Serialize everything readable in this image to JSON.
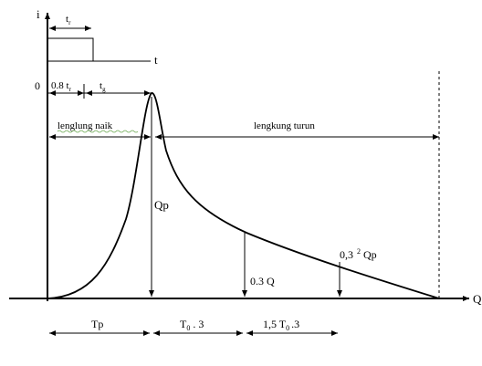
{
  "axes": {
    "y_label": "i",
    "x_label": "Q"
  },
  "rain": {
    "tr_label": "t",
    "tr_sub": "r",
    "t_label": "t"
  },
  "top_dims": {
    "origin_label": "0",
    "lag_label": "0.8 t",
    "lag_sub": "r",
    "tg_label": "t",
    "tg_sub": "g"
  },
  "limbs": {
    "rising_label": "lenglung naik",
    "falling_label": "lengkung turun"
  },
  "flows": {
    "peak_label": "Qp",
    "q1_label": "0.3 Q",
    "q2_prefix": "0,3",
    "q2_exp": "2",
    "q2_suffix": "Qp"
  },
  "bottom_dims": {
    "tp_label": "Tp",
    "t03_label": "T",
    "t03_sub": "0",
    "t03_suffix": ". 3",
    "t15_prefix": "1,5 T",
    "t15_sub": "0",
    "t15_suffix": ".3"
  }
}
